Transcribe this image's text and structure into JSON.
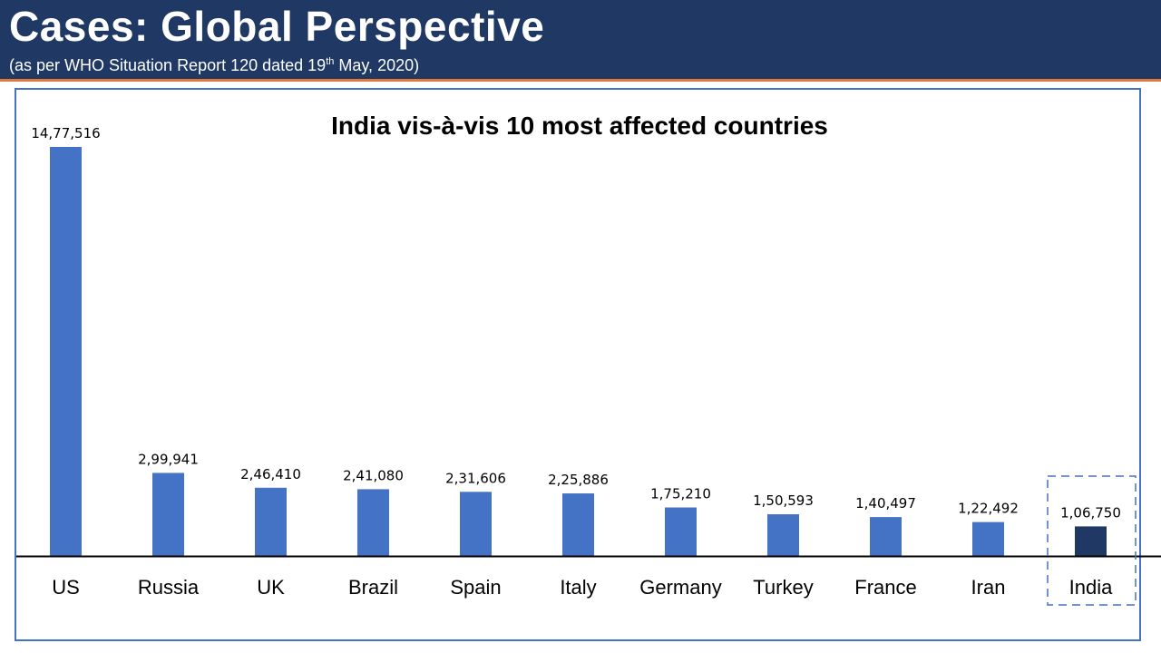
{
  "header": {
    "title": "Cases: Global Perspective",
    "subtitle_prefix": "(as per WHO Situation Report 120 dated 19",
    "subtitle_sup": "th",
    "subtitle_suffix": " May, 2020)"
  },
  "colors": {
    "header_bg": "#1f3864",
    "accent_line": "#e07a3c",
    "bar": "#4472c4",
    "highlight_bar": "#203864",
    "frame": "#4472c4"
  },
  "chart_data": {
    "type": "bar",
    "title": "India vis-à-vis 10 most affected countries",
    "categories": [
      "US",
      "Russia",
      "UK",
      "Brazil",
      "Spain",
      "Italy",
      "Germany",
      "Turkey",
      "France",
      "Iran",
      "India"
    ],
    "values": [
      1477516,
      299941,
      246410,
      241080,
      231606,
      225886,
      175210,
      150593,
      140497,
      122492,
      106750
    ],
    "value_labels": [
      "14,77,516",
      "2,99,941",
      "2,46,410",
      "2,41,080",
      "2,31,606",
      "2,25,886",
      "1,75,210",
      "1,50,593",
      "1,40,497",
      "1,22,492",
      "1,06,750"
    ],
    "highlight": "India",
    "xlabel": "",
    "ylabel": "",
    "ylim": [
      0,
      1477516
    ],
    "grid": false,
    "legend": false
  }
}
